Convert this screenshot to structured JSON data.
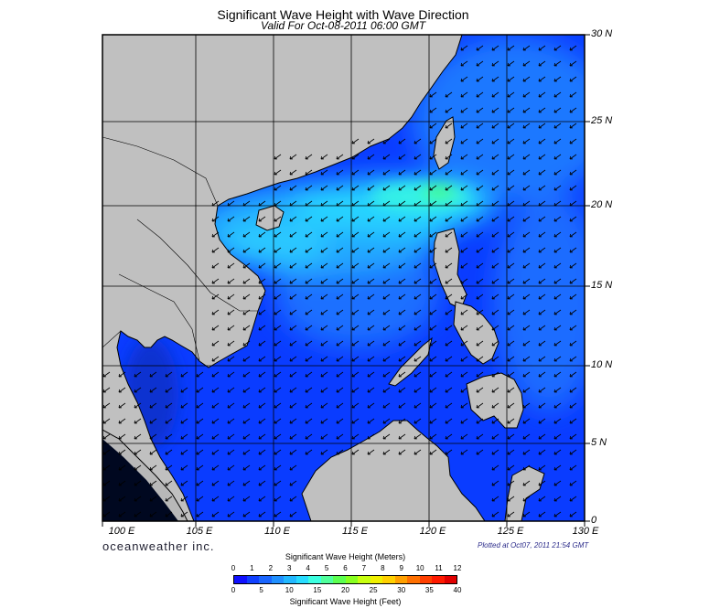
{
  "title": "Significant Wave Height with Wave Direction",
  "subtitle": "Valid For Oct-08-2011 06:00 GMT",
  "lat_labels": [
    "30 N",
    "25 N",
    "20 N",
    "15 N",
    "10 N",
    "5 N",
    "0"
  ],
  "lon_labels": [
    "100 E",
    "105 E",
    "110 E",
    "115 E",
    "120 E",
    "125 E",
    "130 E"
  ],
  "brand": "oceanweather inc.",
  "plotted_at": "Plotted at Oct07, 2011 21:54 GMT",
  "colorbar": {
    "title_top": "Significant Wave Height (Meters)",
    "title_bottom": "Significant Wave Height (Feet)",
    "meter_ticks": [
      "0",
      "1",
      "2",
      "3",
      "4",
      "5",
      "6",
      "7",
      "8",
      "9",
      "10",
      "11",
      "12"
    ],
    "feet_ticks": [
      "0",
      "5",
      "10",
      "15",
      "20",
      "25",
      "30",
      "35",
      "40"
    ],
    "colors": [
      "#1010ff",
      "#1040ff",
      "#1a66ff",
      "#2090ff",
      "#22b8ff",
      "#28dcff",
      "#3cffe0",
      "#50ff9c",
      "#5cff50",
      "#88ff20",
      "#c8ff10",
      "#f0f000",
      "#ffd000",
      "#ffa000",
      "#ff7000",
      "#ff4000",
      "#ff1a00",
      "#e00000"
    ]
  },
  "map_colors": {
    "land": "#c0c0c0",
    "ocean_deep": "#0a3cff",
    "ocean_mid": "#1a6cff",
    "ocean_light": "#2a9cff",
    "high": "#30e6f0",
    "peak": "#40ff80"
  }
}
